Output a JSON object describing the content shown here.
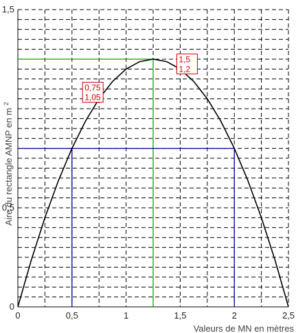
{
  "chart_data": {
    "type": "line",
    "title": "",
    "xlabel": "Valeurs de MN en mètres",
    "ylabel_main": "Aire du rectangle AMNP en m",
    "ylabel_sup": "2",
    "xlim": [
      0,
      2.5
    ],
    "ylim": [
      0,
      1.5
    ],
    "x_ticks": [
      0,
      0.5,
      1,
      1.5,
      2,
      2.5
    ],
    "x_tick_labels": [
      "0",
      "0,5",
      "1",
      "1,5",
      "2",
      "2,5"
    ],
    "y_ticks": [
      0,
      0.5,
      1.5
    ],
    "y_tick_labels": [
      "0",
      "0,5",
      "1,5"
    ],
    "grid": true,
    "series": [
      {
        "function": "y = x * (2.5 - x) * 0.8",
        "x": [
          0,
          0.125,
          0.25,
          0.375,
          0.5,
          0.625,
          0.75,
          0.875,
          1,
          1.125,
          1.25,
          1.375,
          1.5,
          1.625,
          1.75,
          1.875,
          2,
          2.125,
          2.25,
          2.375,
          2.5
        ],
        "y": [
          0,
          0.2375,
          0.45,
          0.6375,
          0.8,
          0.9375,
          1.05,
          1.1375,
          1.2,
          1.2375,
          1.25,
          1.2375,
          1.2,
          1.1375,
          1.05,
          0.9375,
          0.8,
          0.6375,
          0.45,
          0.2375,
          0
        ]
      }
    ],
    "reference_lines": [
      {
        "color": "#00aa00",
        "x": 1.25,
        "y": 1.25
      },
      {
        "color": "#0000aa",
        "x_left": 0.5,
        "x_right": 2,
        "y": 0.8
      }
    ],
    "annotations": [
      {
        "line1": "0,75",
        "line2": "1,05",
        "x": 0.75,
        "y": 1.05
      },
      {
        "line1": "1,5",
        "line2": "1,2",
        "x": 1.5,
        "y": 1.2
      }
    ]
  }
}
